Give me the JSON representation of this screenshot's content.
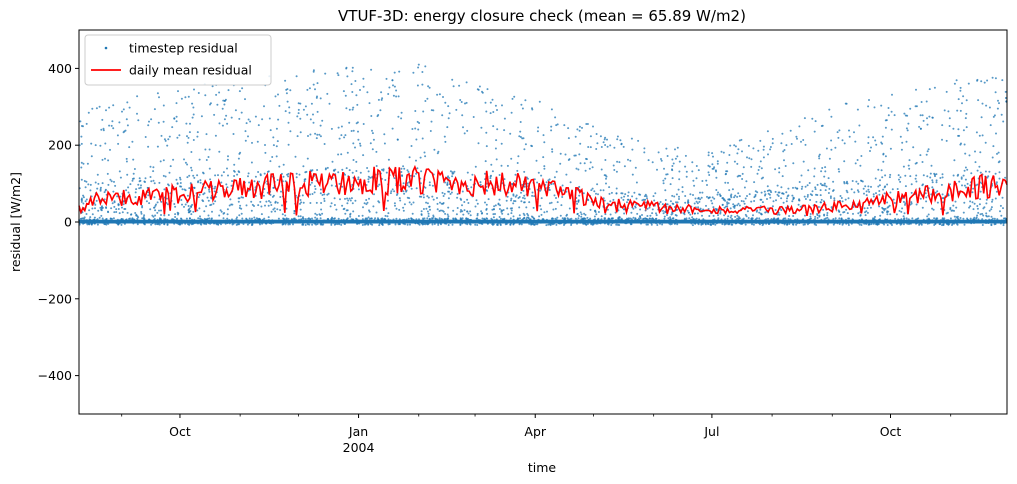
{
  "chart_data": {
    "type": "scatter",
    "title": "VTUF-3D: energy closure check (mean = 65.89 W/m2)",
    "xlabel": "time",
    "ylabel": "residual [W/m2]",
    "xlim": [
      "2003-08-10",
      "2004-11-30"
    ],
    "ylim": [
      -500,
      500
    ],
    "grid": false,
    "legend_position": "top-left",
    "x_ticks": [
      {
        "date": "2003-10-01",
        "label": "Oct",
        "sublabel": ""
      },
      {
        "date": "2004-01-01",
        "label": "Jan",
        "sublabel": "2004"
      },
      {
        "date": "2004-04-01",
        "label": "Apr",
        "sublabel": ""
      },
      {
        "date": "2004-07-01",
        "label": "Jul",
        "sublabel": ""
      },
      {
        "date": "2004-10-01",
        "label": "Oct",
        "sublabel": ""
      }
    ],
    "minor_x_ticks": [
      "2003-09-01",
      "2003-11-01",
      "2003-12-01",
      "2004-02-01",
      "2004-03-01",
      "2004-05-01",
      "2004-06-01",
      "2004-08-01",
      "2004-09-01",
      "2004-11-01"
    ],
    "y_ticks": [
      {
        "value": -400,
        "label": "−400"
      },
      {
        "value": -200,
        "label": "−200"
      },
      {
        "value": 0,
        "label": "0"
      },
      {
        "value": 200,
        "label": "200"
      },
      {
        "value": 400,
        "label": "400"
      }
    ],
    "series": [
      {
        "name": "timestep residual",
        "kind": "scatter",
        "color": "#1f77b4",
        "envelope_note_x": [
          "2003-08-10",
          "2003-09-01",
          "2003-10-01",
          "2003-11-01",
          "2003-12-01",
          "2004-01-01",
          "2004-02-01",
          "2004-03-01",
          "2004-04-01",
          "2004-05-01",
          "2004-06-01",
          "2004-07-01",
          "2004-08-01",
          "2004-09-01",
          "2004-10-01",
          "2004-11-01",
          "2004-11-30"
        ],
        "envelope_max": [
          300,
          320,
          350,
          380,
          390,
          410,
          410,
          370,
          320,
          250,
          200,
          190,
          240,
          300,
          340,
          370,
          390
        ]
      },
      {
        "name": "daily mean residual",
        "kind": "line",
        "color": "#ff0000",
        "x": [
          "2003-08-10",
          "2003-08-25",
          "2003-09-10",
          "2003-09-25",
          "2003-10-10",
          "2003-10-25",
          "2003-11-10",
          "2003-11-25",
          "2003-12-10",
          "2003-12-25",
          "2004-01-10",
          "2004-01-25",
          "2004-02-10",
          "2004-02-25",
          "2004-03-10",
          "2004-03-25",
          "2004-04-10",
          "2004-04-25",
          "2004-05-10",
          "2004-05-25",
          "2004-06-10",
          "2004-06-25",
          "2004-07-10",
          "2004-07-25",
          "2004-08-10",
          "2004-08-25",
          "2004-09-10",
          "2004-09-25",
          "2004-10-10",
          "2004-10-25",
          "2004-11-10",
          "2004-11-30"
        ],
        "y": [
          55,
          60,
          65,
          70,
          80,
          85,
          90,
          95,
          100,
          105,
          110,
          108,
          105,
          100,
          100,
          95,
          80,
          65,
          50,
          45,
          35,
          35,
          30,
          30,
          32,
          35,
          45,
          55,
          65,
          75,
          90,
          100
        ]
      }
    ]
  }
}
